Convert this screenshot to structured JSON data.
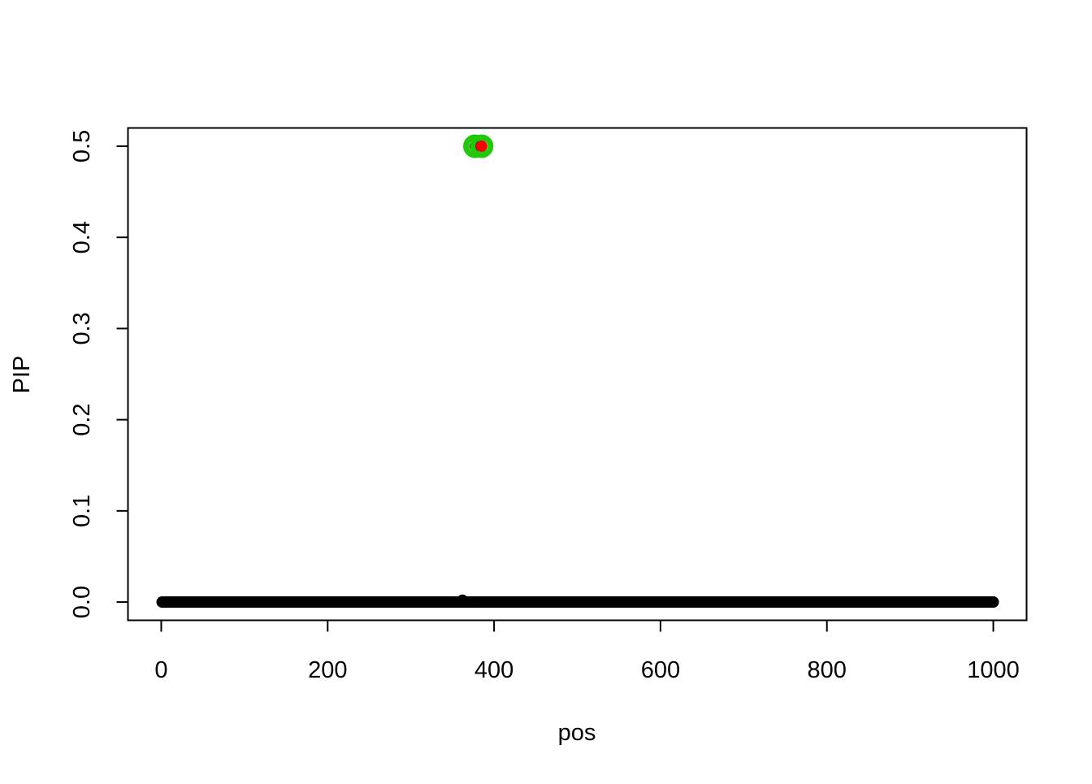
{
  "chart_data": {
    "type": "scatter",
    "title": "",
    "xlabel": "pos",
    "ylabel": "PIP",
    "xlim": [
      -40,
      1040
    ],
    "ylim": [
      -0.02,
      0.52
    ],
    "xticks": [
      0,
      200,
      400,
      600,
      800,
      1000
    ],
    "xtick_labels": [
      "0",
      "200",
      "400",
      "600",
      "800",
      "1000"
    ],
    "yticks": [
      0.0,
      0.1,
      0.2,
      0.3,
      0.4,
      0.5
    ],
    "ytick_labels": [
      "0.0",
      "0.1",
      "0.2",
      "0.3",
      "0.4",
      "0.5"
    ],
    "grid": false,
    "series": [
      {
        "color": "#000000",
        "marker": "filled-circle",
        "x_range": [
          1,
          1000
        ],
        "y_default": 0,
        "points_nonzero": [
          {
            "x": 362,
            "y": 0.002
          },
          {
            "x": 377,
            "y": 0.5
          },
          {
            "x": 385,
            "y": 0.5
          }
        ]
      },
      {
        "color": "#22c80a",
        "marker": "ring",
        "points": [
          {
            "x": 377,
            "y": 0.5
          },
          {
            "x": 385,
            "y": 0.5
          }
        ]
      },
      {
        "color": "#ff0000",
        "marker": "filled-circle",
        "points": [
          {
            "x": 385,
            "y": 0.5
          }
        ]
      }
    ]
  }
}
